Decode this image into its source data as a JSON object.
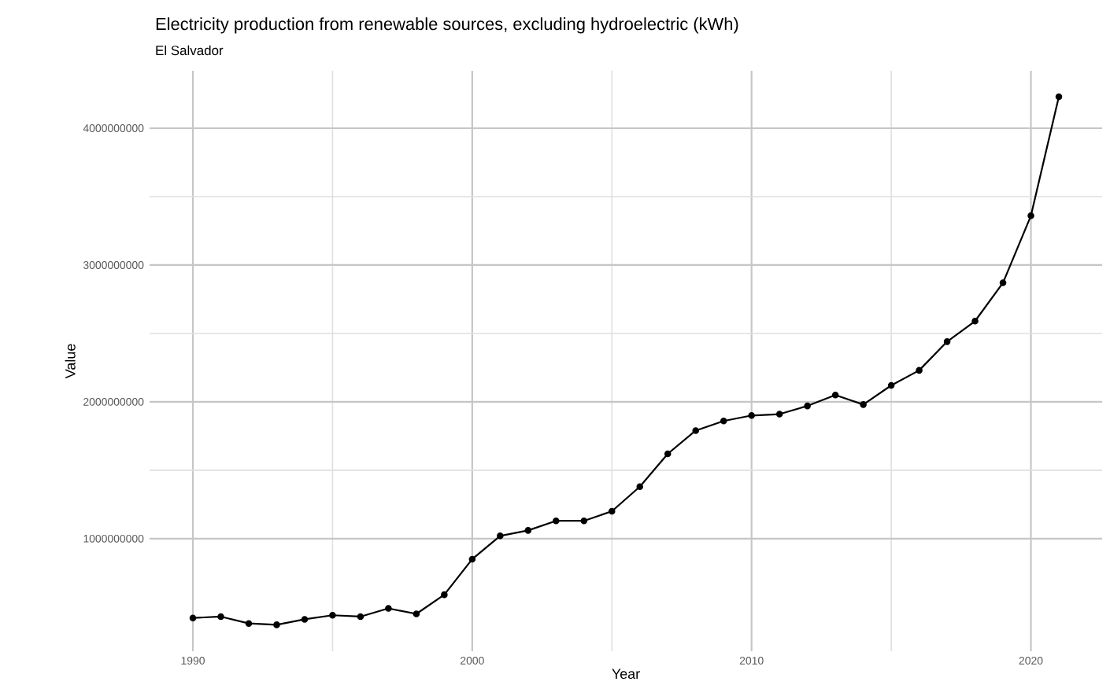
{
  "chart_data": {
    "type": "line",
    "title": "Electricity production from renewable sources, excluding hydroelectric (kWh)",
    "subtitle": "El Salvador",
    "xlabel": "Year",
    "ylabel": "Value",
    "x": [
      1990,
      1991,
      1992,
      1993,
      1994,
      1995,
      1996,
      1997,
      1998,
      1999,
      2000,
      2001,
      2002,
      2003,
      2004,
      2005,
      2006,
      2007,
      2008,
      2009,
      2010,
      2011,
      2012,
      2013,
      2014,
      2015,
      2016,
      2017,
      2018,
      2019,
      2020,
      2021
    ],
    "series": [
      {
        "color": "#000000",
        "values": [
          420000000,
          430000000,
          380000000,
          370000000,
          410000000,
          440000000,
          430000000,
          490000000,
          450000000,
          590000000,
          850000000,
          1020000000,
          1060000000,
          1130000000,
          1130000000,
          1200000000,
          1380000000,
          1620000000,
          1790000000,
          1860000000,
          1900000000,
          1910000000,
          1970000000,
          2050000000,
          1980000000,
          2120000000,
          2230000000,
          2440000000,
          2590000000,
          2870000000,
          3360000000,
          4230000000
        ]
      }
    ],
    "xlim": [
      1988.45,
      2022.55
    ],
    "ylim": [
      177000000,
      4420000000
    ],
    "xticks": [
      1990,
      2000,
      2010,
      2020
    ],
    "yticks": [
      1000000000,
      2000000000,
      3000000000,
      4000000000
    ],
    "grid": true,
    "marker": "circle",
    "line_style": "solid"
  }
}
